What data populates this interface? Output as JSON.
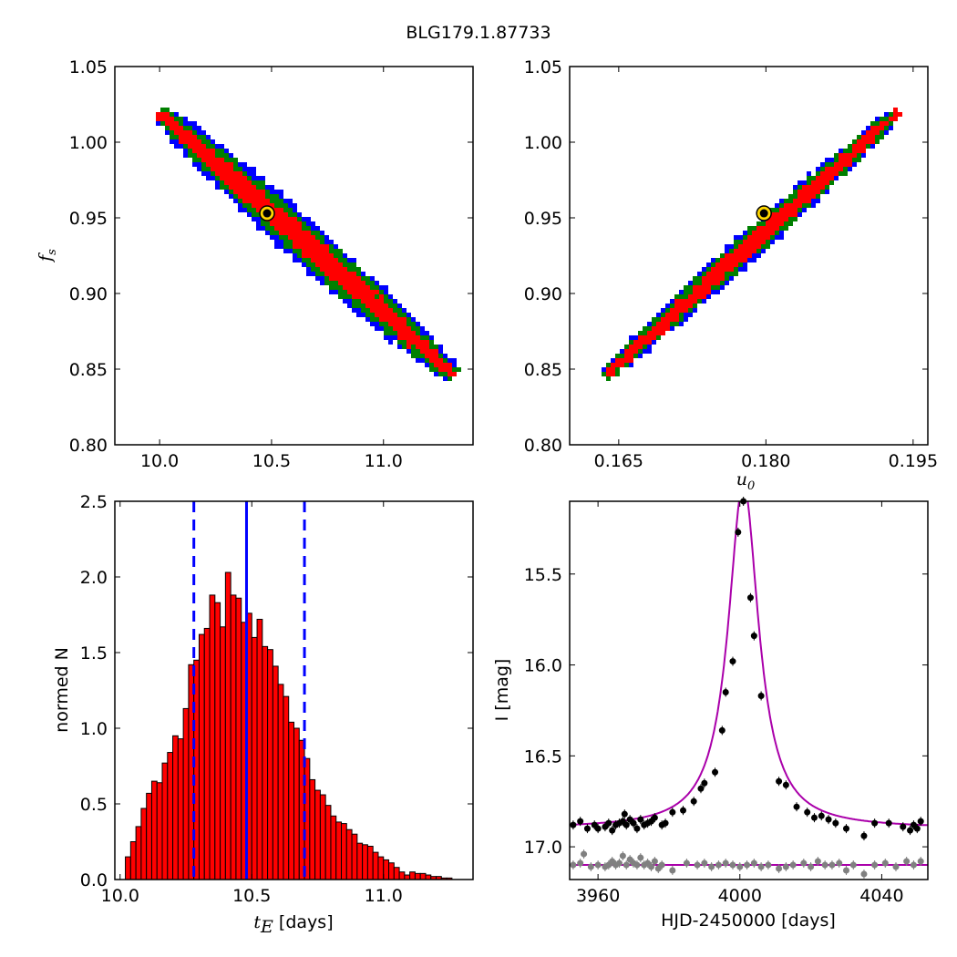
{
  "figure": {
    "title": "BLG179.1.87733"
  },
  "chart_data": [
    {
      "id": "panel-tE-fs",
      "type": "heatmap",
      "xlabel": "",
      "ylabel": "f_s",
      "xlim": [
        9.8,
        11.4
      ],
      "ylim": [
        0.8,
        1.05
      ],
      "xticks": [
        10.0,
        10.5,
        11.0
      ],
      "xtick_labels": [
        "10.0",
        "10.5",
        "11.0"
      ],
      "yticks": [
        0.8,
        0.85,
        0.9,
        0.95,
        1.0,
        1.05
      ],
      "ytick_labels": [
        "0.80",
        "0.85",
        "0.90",
        "0.95",
        "1.00",
        "1.05"
      ],
      "confidence_colors": {
        "outer": "#0000ff",
        "middle": "#008000",
        "inner": "#ff0000"
      },
      "band": {
        "x_start": 10.0,
        "y_start": 1.02,
        "x_end": 11.32,
        "y_end": 0.845,
        "inner_width": 0.028,
        "middle_width": 0.045,
        "outer_width": 0.058
      },
      "best_fit": {
        "x": 10.48,
        "y": 0.953
      }
    },
    {
      "id": "panel-u0-fs",
      "type": "heatmap",
      "xlabel": "u_0",
      "ylabel": "",
      "xlim": [
        0.16,
        0.1965
      ],
      "ylim": [
        0.8,
        1.05
      ],
      "xticks": [
        0.165,
        0.18,
        0.195
      ],
      "xtick_labels": [
        "0.165",
        "0.180",
        "0.195"
      ],
      "yticks": [
        0.8,
        0.85,
        0.9,
        0.95,
        1.0,
        1.05
      ],
      "ytick_labels": [
        "0.80",
        "0.85",
        "0.90",
        "0.95",
        "1.00",
        "1.05"
      ],
      "confidence_colors": {
        "outer": "#0000ff",
        "middle": "#008000",
        "inner": "#ff0000"
      },
      "band": {
        "x_start": 0.1635,
        "y_start": 0.845,
        "x_end": 0.1935,
        "y_end": 1.02,
        "inner_width": 0.02,
        "middle_width": 0.032,
        "outer_width": 0.04
      },
      "best_fit": {
        "x": 0.1798,
        "y": 0.953
      }
    },
    {
      "id": "panel-tE-hist",
      "type": "bar",
      "xlabel": "t_E [days]",
      "ylabel": "normed N",
      "xlim": [
        9.98,
        11.34
      ],
      "ylim": [
        0.0,
        2.5
      ],
      "xticks": [
        10.0,
        10.5,
        11.0
      ],
      "xtick_labels": [
        "10.0",
        "10.5",
        "11.0"
      ],
      "yticks": [
        0.0,
        0.5,
        1.0,
        1.5,
        2.0,
        2.5
      ],
      "ytick_labels": [
        "0.0",
        "0.5",
        "1.0",
        "1.5",
        "2.0",
        "2.5"
      ],
      "bin_start": 10.02,
      "bin_width": 0.02,
      "values": [
        0.15,
        0.25,
        0.35,
        0.47,
        0.57,
        0.65,
        0.64,
        0.77,
        0.84,
        0.95,
        0.93,
        1.13,
        1.42,
        1.45,
        1.62,
        1.66,
        1.88,
        1.83,
        1.67,
        2.03,
        1.88,
        1.86,
        1.7,
        1.76,
        1.6,
        1.72,
        1.54,
        1.52,
        1.41,
        1.29,
        1.21,
        1.04,
        1.0,
        0.92,
        0.8,
        0.66,
        0.59,
        0.56,
        0.49,
        0.42,
        0.38,
        0.37,
        0.33,
        0.3,
        0.24,
        0.23,
        0.22,
        0.18,
        0.15,
        0.13,
        0.11,
        0.08,
        0.05,
        0.03,
        0.05,
        0.04,
        0.04,
        0.03,
        0.02,
        0.02,
        0.01,
        0.01
      ],
      "bar_color": "#ff0000",
      "median": 10.48,
      "confidence_bounds": [
        10.28,
        10.7
      ],
      "line_color": "#0000ff"
    },
    {
      "id": "panel-lightcurve",
      "type": "scatter",
      "xlabel": "HJD-2450000 [days]",
      "ylabel": "I [mag]",
      "xlim": [
        3952,
        4053
      ],
      "ylim": [
        17.18,
        15.1
      ],
      "xticks": [
        3960,
        4000,
        4040
      ],
      "xtick_labels": [
        "3960",
        "4000",
        "4040"
      ],
      "yticks": [
        15.5,
        16.0,
        16.5,
        17.0
      ],
      "ytick_labels": [
        "15.5",
        "16.0",
        "16.5",
        "17.0"
      ],
      "model": {
        "t0": 4001.0,
        "baseline": 16.9,
        "peak": 15.0,
        "width": 5.2,
        "color": "#aa00aa"
      },
      "series": [
        {
          "color": "#000000",
          "points": [
            [
              3953,
              16.88
            ],
            [
              3955,
              16.86
            ],
            [
              3957,
              16.9
            ],
            [
              3959,
              16.88
            ],
            [
              3960,
              16.9
            ],
            [
              3962,
              16.89
            ],
            [
              3963,
              16.87
            ],
            [
              3964,
              16.91
            ],
            [
              3965,
              16.88
            ],
            [
              3966,
              16.87
            ],
            [
              3967,
              16.86
            ],
            [
              3967.5,
              16.82
            ],
            [
              3968,
              16.88
            ],
            [
              3969,
              16.85
            ],
            [
              3970,
              16.87
            ],
            [
              3971,
              16.9
            ],
            [
              3972,
              16.85
            ],
            [
              3973,
              16.88
            ],
            [
              3974,
              16.87
            ],
            [
              3975,
              16.86
            ],
            [
              3976,
              16.84
            ],
            [
              3978,
              16.88
            ],
            [
              3979,
              16.87
            ],
            [
              3981,
              16.81
            ],
            [
              3984,
              16.8
            ],
            [
              3987,
              16.75
            ],
            [
              3989,
              16.68
            ],
            [
              3990,
              16.65
            ],
            [
              3993,
              16.59
            ],
            [
              3995,
              16.36
            ],
            [
              3996,
              16.15
            ],
            [
              3998,
              15.98
            ],
            [
              3999.5,
              15.27
            ],
            [
              4001,
              15.1
            ],
            [
              4003,
              15.63
            ],
            [
              4004,
              15.84
            ],
            [
              4006,
              16.17
            ],
            [
              4011,
              16.64
            ],
            [
              4013,
              16.66
            ],
            [
              4016,
              16.78
            ],
            [
              4019,
              16.81
            ],
            [
              4021,
              16.84
            ],
            [
              4023,
              16.83
            ],
            [
              4025,
              16.85
            ],
            [
              4027,
              16.87
            ],
            [
              4030,
              16.9
            ],
            [
              4035,
              16.94
            ],
            [
              4038,
              16.87
            ],
            [
              4042,
              16.87
            ],
            [
              4046,
              16.89
            ],
            [
              4048,
              16.91
            ],
            [
              4049,
              16.88
            ],
            [
              4050,
              16.9
            ],
            [
              4051,
              16.86
            ]
          ]
        },
        {
          "color": "#808080",
          "points": [
            [
              3953,
              17.1
            ],
            [
              3955,
              17.09
            ],
            [
              3956,
              17.04
            ],
            [
              3958,
              17.11
            ],
            [
              3960,
              17.1
            ],
            [
              3962,
              17.11
            ],
            [
              3963,
              17.1
            ],
            [
              3964,
              17.08
            ],
            [
              3965,
              17.1
            ],
            [
              3966,
              17.09
            ],
            [
              3967,
              17.05
            ],
            [
              3968,
              17.1
            ],
            [
              3969,
              17.07
            ],
            [
              3970,
              17.09
            ],
            [
              3971,
              17.1
            ],
            [
              3972,
              17.06
            ],
            [
              3973,
              17.1
            ],
            [
              3974,
              17.09
            ],
            [
              3975,
              17.11
            ],
            [
              3976,
              17.08
            ],
            [
              3977,
              17.12
            ],
            [
              3978,
              17.1
            ],
            [
              3981,
              17.13
            ],
            [
              3985,
              17.09
            ],
            [
              3988,
              17.1
            ],
            [
              3990,
              17.09
            ],
            [
              3992,
              17.11
            ],
            [
              3994,
              17.1
            ],
            [
              3996,
              17.09
            ],
            [
              3998,
              17.1
            ],
            [
              4000,
              17.11
            ],
            [
              4002,
              17.1
            ],
            [
              4004,
              17.09
            ],
            [
              4006,
              17.11
            ],
            [
              4008,
              17.1
            ],
            [
              4011,
              17.12
            ],
            [
              4013,
              17.11
            ],
            [
              4015,
              17.1
            ],
            [
              4018,
              17.09
            ],
            [
              4020,
              17.11
            ],
            [
              4022,
              17.08
            ],
            [
              4024,
              17.1
            ],
            [
              4026,
              17.1
            ],
            [
              4028,
              17.09
            ],
            [
              4030,
              17.13
            ],
            [
              4032,
              17.1
            ],
            [
              4035,
              17.15
            ],
            [
              4038,
              17.1
            ],
            [
              4041,
              17.09
            ],
            [
              4044,
              17.11
            ],
            [
              4047,
              17.08
            ],
            [
              4049,
              17.1
            ],
            [
              4051,
              17.08
            ]
          ]
        }
      ]
    }
  ]
}
